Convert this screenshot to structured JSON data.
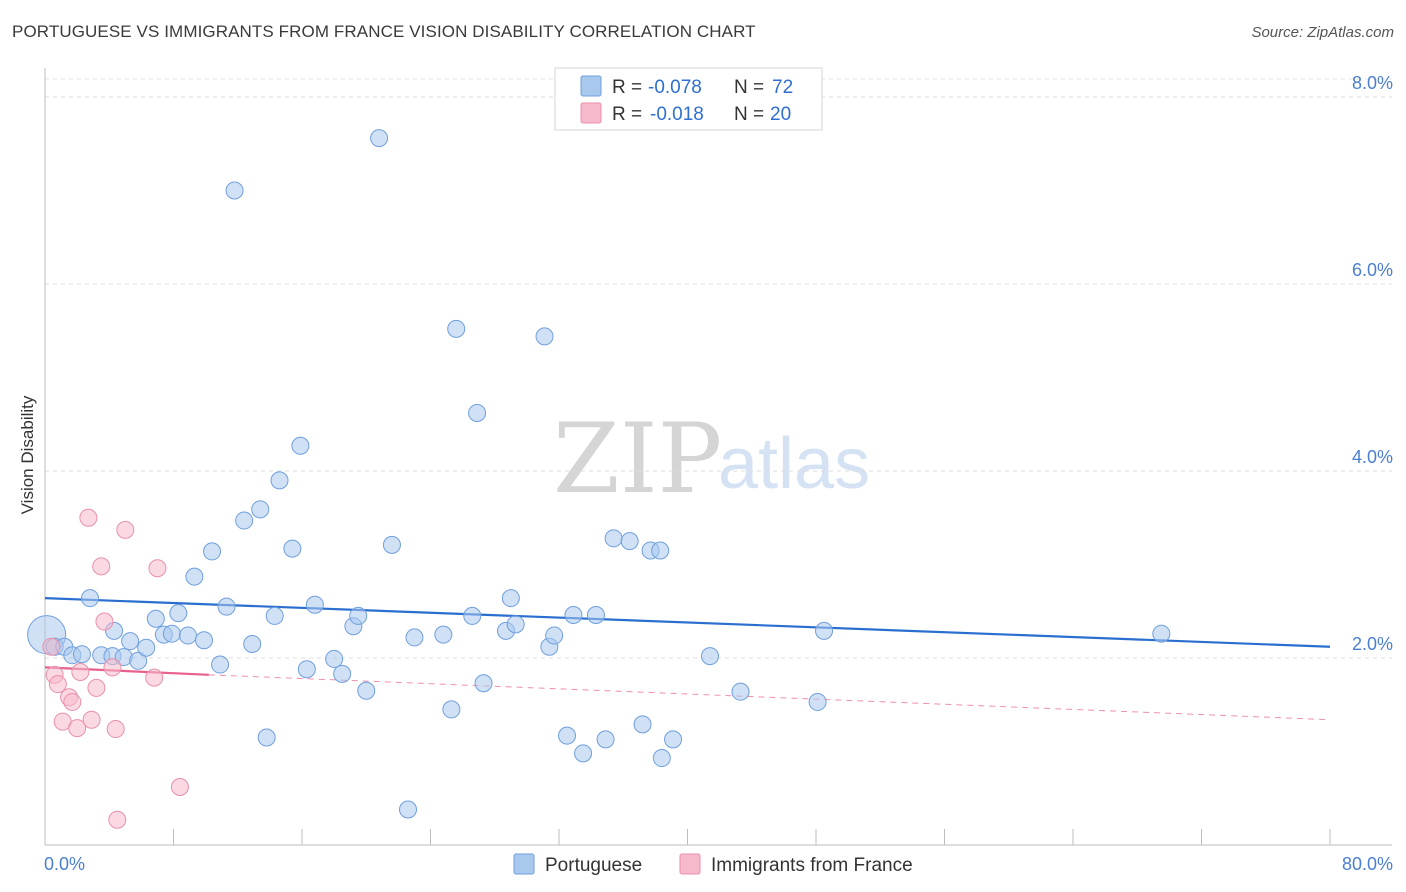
{
  "header": {
    "title": "PORTUGUESE VS IMMIGRANTS FROM FRANCE VISION DISABILITY CORRELATION CHART",
    "source": "Source: ZipAtlas.com"
  },
  "watermark": {
    "zip": "ZIP",
    "atlas": "atlas"
  },
  "legend_box": {
    "rows": [
      {
        "r_label": "R =",
        "r_value": "-0.078",
        "n_label": "N =",
        "n_value": "72",
        "color": "#a9c8ee"
      },
      {
        "r_label": "R =",
        "r_value": "-0.018",
        "n_label": "N =",
        "n_value": "20",
        "color": "#f5b9cb"
      }
    ]
  },
  "bottom_legend": [
    {
      "label": "Portuguese",
      "color": "#a9c8ee"
    },
    {
      "label": "Immigrants from France",
      "color": "#f5b9cb"
    }
  ],
  "chart_data": {
    "type": "scatter",
    "title": "PORTUGUESE VS IMMIGRANTS FROM FRANCE VISION DISABILITY CORRELATION CHART",
    "xlabel": "",
    "ylabel": "Vision Disability",
    "xlim": [
      0,
      80
    ],
    "ylim": [
      0,
      8.2
    ],
    "x_tick_labels": [
      "0.0%",
      "80.0%"
    ],
    "y_ticks": [
      2,
      4,
      6,
      8
    ],
    "y_tick_labels": [
      "2.0%",
      "4.0%",
      "6.0%",
      "8.0%"
    ],
    "series": [
      {
        "name": "Portuguese",
        "color": "#a9c8ee",
        "stroke": "#6f9fdd",
        "trend": {
          "x0": 0,
          "y0": 2.64,
          "x1": 80,
          "y1": 2.12,
          "color": "#2a6fd0"
        },
        "points": [
          [
            0.1,
            2.25
          ],
          [
            0.6,
            2.12
          ],
          [
            1.2,
            2.12
          ],
          [
            1.7,
            2.03
          ],
          [
            2.3,
            2.04
          ],
          [
            2.8,
            2.64
          ],
          [
            3.5,
            2.03
          ],
          [
            4.2,
            2.02
          ],
          [
            4.3,
            2.29
          ],
          [
            4.9,
            2.01
          ],
          [
            5.3,
            2.18
          ],
          [
            5.8,
            1.97
          ],
          [
            6.3,
            2.11
          ],
          [
            6.9,
            2.42
          ],
          [
            7.4,
            2.25
          ],
          [
            7.9,
            2.26
          ],
          [
            8.3,
            2.48
          ],
          [
            8.9,
            2.24
          ],
          [
            9.3,
            2.87
          ],
          [
            9.9,
            2.19
          ],
          [
            10.4,
            3.14
          ],
          [
            10.9,
            1.93
          ],
          [
            11.3,
            2.55
          ],
          [
            11.8,
            7.0
          ],
          [
            12.4,
            3.47
          ],
          [
            12.9,
            2.15
          ],
          [
            13.4,
            3.59
          ],
          [
            13.8,
            1.15
          ],
          [
            14.3,
            2.45
          ],
          [
            14.6,
            3.9
          ],
          [
            15.4,
            3.17
          ],
          [
            15.9,
            4.27
          ],
          [
            16.3,
            1.88
          ],
          [
            16.8,
            2.57
          ],
          [
            18.0,
            1.99
          ],
          [
            18.5,
            1.83
          ],
          [
            19.2,
            2.34
          ],
          [
            19.5,
            2.45
          ],
          [
            20.0,
            1.65
          ],
          [
            20.8,
            7.56
          ],
          [
            21.6,
            3.21
          ],
          [
            22.6,
            0.38
          ],
          [
            23.0,
            2.22
          ],
          [
            24.8,
            2.25
          ],
          [
            25.3,
            1.45
          ],
          [
            25.6,
            5.52
          ],
          [
            26.6,
            2.45
          ],
          [
            26.9,
            4.62
          ],
          [
            27.3,
            1.73
          ],
          [
            28.7,
            2.29
          ],
          [
            29.0,
            2.64
          ],
          [
            29.3,
            2.36
          ],
          [
            31.1,
            5.44
          ],
          [
            31.4,
            2.12
          ],
          [
            31.7,
            2.24
          ],
          [
            32.5,
            1.17
          ],
          [
            32.9,
            2.46
          ],
          [
            33.5,
            0.98
          ],
          [
            34.3,
            2.46
          ],
          [
            34.9,
            1.13
          ],
          [
            35.4,
            3.28
          ],
          [
            36.4,
            3.25
          ],
          [
            37.2,
            1.29
          ],
          [
            37.7,
            3.15
          ],
          [
            38.3,
            3.15
          ],
          [
            38.4,
            0.93
          ],
          [
            39.1,
            1.13
          ],
          [
            41.4,
            2.02
          ],
          [
            43.3,
            1.64
          ],
          [
            48.1,
            1.53
          ],
          [
            48.5,
            2.29
          ],
          [
            69.5,
            2.26
          ]
        ]
      },
      {
        "name": "Immigrants from France",
        "color": "#f5b9cb",
        "stroke": "#e990ab",
        "trend": {
          "x0": 0,
          "y0": 1.9,
          "x1": 10.2,
          "y1": 1.82,
          "color": "#e8608c",
          "dashed_to": {
            "x": 80,
            "y": 1.34
          }
        },
        "points": [
          [
            0.4,
            2.12
          ],
          [
            0.6,
            1.82
          ],
          [
            0.8,
            1.72
          ],
          [
            1.1,
            1.32
          ],
          [
            1.5,
            1.58
          ],
          [
            1.7,
            1.53
          ],
          [
            2.0,
            1.25
          ],
          [
            2.2,
            1.85
          ],
          [
            2.7,
            3.5
          ],
          [
            2.9,
            1.34
          ],
          [
            3.2,
            1.68
          ],
          [
            3.5,
            2.98
          ],
          [
            3.7,
            2.39
          ],
          [
            4.2,
            1.9
          ],
          [
            4.4,
            1.24
          ],
          [
            4.5,
            0.27
          ],
          [
            5.0,
            3.37
          ],
          [
            6.8,
            1.79
          ],
          [
            7.0,
            2.96
          ],
          [
            8.4,
            0.62
          ]
        ]
      }
    ]
  }
}
